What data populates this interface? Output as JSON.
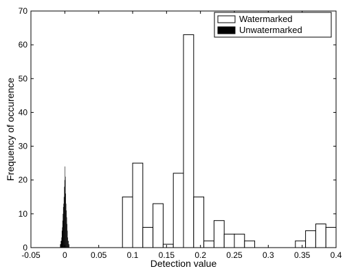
{
  "chart_data": {
    "type": "bar",
    "title": "",
    "xlabel": "Detection value",
    "ylabel": "Frequency of occurence",
    "xlim": [
      -0.05,
      0.4
    ],
    "ylim": [
      0,
      70
    ],
    "x_ticks": [
      -0.05,
      0,
      0.05,
      0.1,
      0.15,
      0.2,
      0.25,
      0.3,
      0.35,
      0.4
    ],
    "x_tick_labels": [
      "-0.05",
      "0",
      "0.05",
      "0.1",
      "0.15",
      "0.2",
      "0.25",
      "0.3",
      "0.35",
      "0.4"
    ],
    "y_ticks": [
      0,
      10,
      20,
      30,
      40,
      50,
      60,
      70
    ],
    "y_tick_labels": [
      "0",
      "10",
      "20",
      "30",
      "40",
      "50",
      "60",
      "70"
    ],
    "grid": false,
    "legend_position": "top-right",
    "series": [
      {
        "name": "Watermarked",
        "style": "white bars with black edges",
        "bin_width": 0.015,
        "x": [
          0.0925,
          0.1075,
          0.1225,
          0.1375,
          0.1525,
          0.1675,
          0.1825,
          0.1975,
          0.2125,
          0.2275,
          0.2425,
          0.2575,
          0.2725,
          0.2875,
          0.3025,
          0.3175,
          0.3325,
          0.3475,
          0.3625,
          0.3775,
          0.3925
        ],
        "values": [
          15,
          25,
          6,
          13,
          1,
          22,
          63,
          15,
          2,
          8,
          4,
          4,
          2,
          0,
          0,
          0,
          0,
          2,
          5,
          7,
          6
        ]
      },
      {
        "name": "Unwatermarked",
        "style": "black bars",
        "bin_width": 0.0005,
        "x": [
          -0.00675,
          -0.00625,
          -0.00575,
          -0.00525,
          -0.00475,
          -0.00425,
          -0.00375,
          -0.00325,
          -0.00275,
          -0.00225,
          -0.00175,
          -0.00125,
          -0.00075,
          -0.00025,
          0.00025,
          0.00075,
          0.00125,
          0.00175,
          0.00225,
          0.00275,
          0.00325,
          0.00375,
          0.00425,
          0.00475,
          0.00525,
          0.00575,
          0.00625
        ],
        "values": [
          1,
          1,
          2,
          2,
          3,
          5,
          6,
          8,
          10,
          12,
          13,
          15,
          18,
          20,
          24,
          21,
          16,
          13,
          11,
          9,
          7,
          5,
          3,
          2,
          2,
          1,
          1
        ]
      }
    ],
    "colors": {
      "watermarked_fill": "#ffffff",
      "watermarked_edge": "#000000",
      "unwatermarked_fill": "#000000",
      "axes": "#000000",
      "background": "#ffffff"
    }
  }
}
